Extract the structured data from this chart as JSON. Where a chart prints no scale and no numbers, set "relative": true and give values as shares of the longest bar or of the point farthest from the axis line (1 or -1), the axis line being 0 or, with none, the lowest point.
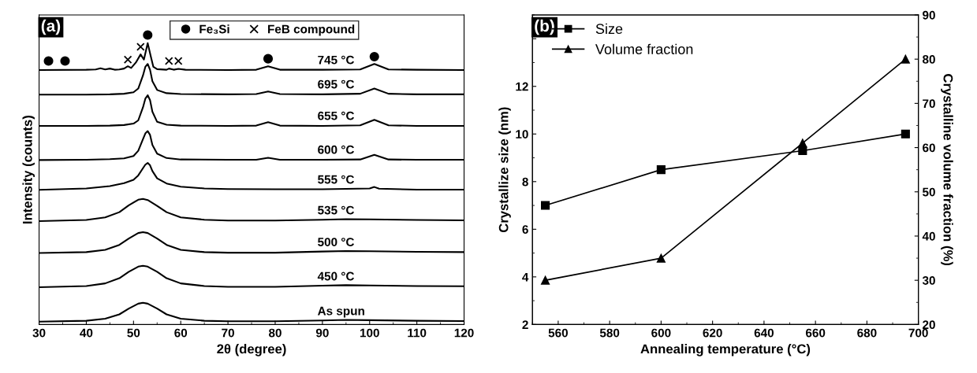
{
  "chart_data": [
    {
      "type": "line",
      "relative": true,
      "xlabel": "2θ (degree)",
      "ylabel": "Intensity (counts)",
      "xlim": [
        30,
        120
      ],
      "xticks": [
        30,
        40,
        50,
        60,
        70,
        80,
        90,
        100,
        110,
        120
      ],
      "tick_labels": "x",
      "legend": "top",
      "annotations": [
        "(a)"
      ],
      "series": [
        {
          "name": "745 °C",
          "color": "#000000",
          "x": [
            30,
            40,
            42,
            43,
            44,
            45,
            46,
            47,
            48,
            48.8,
            49.5,
            50.5,
            51.5,
            52.2,
            53,
            53.6,
            54.2,
            55,
            57,
            57.5,
            58.5,
            59.5,
            61,
            70,
            76,
            78.5,
            81,
            90,
            98,
            101,
            104,
            110,
            120
          ],
          "values": [
            0.879,
            0.88,
            0.881,
            0.885,
            0.881,
            0.884,
            0.88,
            0.881,
            0.884,
            0.892,
            0.886,
            0.905,
            0.933,
            0.915,
            0.972,
            0.93,
            0.89,
            0.882,
            0.88,
            0.884,
            0.88,
            0.883,
            0.88,
            0.879,
            0.88,
            0.892,
            0.88,
            0.88,
            0.881,
            0.9,
            0.881,
            0.88,
            0.879
          ]
        },
        {
          "name": "695 °C",
          "color": "#000000",
          "x": [
            30,
            40,
            45,
            48,
            50,
            51,
            52,
            52.5,
            53,
            53.5,
            54,
            55,
            57,
            60,
            70,
            76,
            78.5,
            81,
            90,
            98,
            101,
            104,
            110,
            120
          ],
          "values": [
            0.794,
            0.794,
            0.795,
            0.797,
            0.802,
            0.815,
            0.86,
            0.89,
            0.9,
            0.88,
            0.84,
            0.81,
            0.799,
            0.796,
            0.795,
            0.796,
            0.805,
            0.796,
            0.795,
            0.797,
            0.815,
            0.797,
            0.795,
            0.795
          ]
        },
        {
          "name": "655 °C",
          "color": "#000000",
          "x": [
            30,
            40,
            45,
            48,
            50,
            51,
            52,
            52.5,
            53,
            53.5,
            54,
            55,
            57,
            60,
            70,
            76,
            78.5,
            81,
            90,
            98,
            101,
            104,
            110,
            120
          ],
          "values": [
            0.686,
            0.686,
            0.687,
            0.689,
            0.694,
            0.705,
            0.75,
            0.78,
            0.792,
            0.775,
            0.735,
            0.7,
            0.69,
            0.687,
            0.686,
            0.687,
            0.699,
            0.687,
            0.686,
            0.688,
            0.707,
            0.688,
            0.686,
            0.686
          ]
        },
        {
          "name": "600 °C",
          "color": "#000000",
          "x": [
            30,
            40,
            45,
            48,
            50,
            51,
            52,
            52.5,
            53,
            53.5,
            54,
            55,
            57,
            60,
            70,
            76,
            78.5,
            81,
            90,
            98,
            101,
            104,
            110,
            120
          ],
          "values": [
            0.568,
            0.569,
            0.571,
            0.574,
            0.582,
            0.6,
            0.64,
            0.66,
            0.668,
            0.655,
            0.62,
            0.59,
            0.575,
            0.57,
            0.569,
            0.569,
            0.576,
            0.569,
            0.569,
            0.57,
            0.586,
            0.57,
            0.569,
            0.569
          ]
        },
        {
          "name": "555 °C",
          "color": "#000000",
          "x": [
            30,
            40,
            45,
            48,
            50,
            51,
            52,
            52.5,
            53,
            53.5,
            54,
            55,
            57,
            60,
            65,
            70,
            80,
            90,
            100,
            101,
            102,
            110,
            120
          ],
          "values": [
            0.465,
            0.47,
            0.478,
            0.488,
            0.5,
            0.515,
            0.54,
            0.552,
            0.558,
            0.55,
            0.53,
            0.505,
            0.487,
            0.476,
            0.47,
            0.468,
            0.467,
            0.467,
            0.47,
            0.475,
            0.469,
            0.466,
            0.466
          ]
        },
        {
          "name": "535 °C",
          "color": "#000000",
          "x": [
            30,
            40,
            44,
            47,
            49,
            51,
            52,
            53,
            55,
            57,
            60,
            65,
            70,
            80,
            90,
            95,
            100,
            110,
            120
          ],
          "values": [
            0.357,
            0.361,
            0.37,
            0.388,
            0.412,
            0.431,
            0.434,
            0.43,
            0.41,
            0.388,
            0.37,
            0.362,
            0.359,
            0.359,
            0.362,
            0.364,
            0.363,
            0.361,
            0.36
          ]
        },
        {
          "name": "500 °C",
          "color": "#000000",
          "x": [
            30,
            40,
            44,
            47,
            49,
            51,
            52,
            53,
            55,
            57,
            60,
            65,
            70,
            80,
            90,
            95,
            100,
            110,
            120
          ],
          "values": [
            0.247,
            0.25,
            0.258,
            0.275,
            0.297,
            0.316,
            0.319,
            0.316,
            0.297,
            0.275,
            0.258,
            0.25,
            0.248,
            0.248,
            0.252,
            0.254,
            0.253,
            0.251,
            0.25
          ]
        },
        {
          "name": "450 °C",
          "color": "#000000",
          "x": [
            30,
            40,
            44,
            47,
            49,
            51,
            52,
            53,
            55,
            57,
            60,
            65,
            70,
            80,
            90,
            95,
            100,
            110,
            120
          ],
          "values": [
            0.129,
            0.133,
            0.142,
            0.16,
            0.182,
            0.2,
            0.203,
            0.2,
            0.182,
            0.16,
            0.142,
            0.133,
            0.13,
            0.13,
            0.134,
            0.136,
            0.135,
            0.133,
            0.132
          ]
        },
        {
          "name": "As spun",
          "color": "#000000",
          "x": [
            30,
            40,
            44,
            47,
            49,
            51,
            52,
            53,
            55,
            57,
            60,
            65,
            70,
            80,
            90,
            95,
            100,
            110,
            120
          ],
          "values": [
            0.01,
            0.013,
            0.02,
            0.035,
            0.055,
            0.072,
            0.075,
            0.072,
            0.055,
            0.035,
            0.02,
            0.013,
            0.011,
            0.011,
            0.014,
            0.016,
            0.015,
            0.013,
            0.012
          ]
        },
        {
          "name": "Fe₃Si",
          "type": "scatter",
          "marker": "circle",
          "color": "#000000",
          "x": [
            32,
            35.5,
            53,
            78.5,
            101
          ],
          "values": [
            0.91,
            0.91,
            1.0,
            0.918,
            0.925
          ]
        },
        {
          "name": "FeB compound",
          "type": "scatter",
          "marker": "cross",
          "color": "#000000",
          "x": [
            48.8,
            51.5,
            57.5,
            59.5
          ],
          "values": [
            0.915,
            0.959,
            0.91,
            0.91
          ]
        }
      ]
    },
    {
      "type": "line",
      "xlabel": "Annealing temperature (°C)",
      "ylabel": "Crystallize size (nm)",
      "y2label": "Crystalline volume fraction (%)",
      "xlim": [
        550,
        700
      ],
      "xticks": [
        560,
        580,
        600,
        620,
        640,
        660,
        680,
        700
      ],
      "ylim": [
        2,
        15
      ],
      "yticks": [
        2,
        4,
        6,
        8,
        10,
        12,
        {
          "value": 14,
          "label": null
        }
      ],
      "y2lim": [
        20,
        90
      ],
      "y2ticks": [
        20,
        30,
        40,
        50,
        60,
        70,
        80,
        90
      ],
      "legend": "top left",
      "annotations": [
        "(b)"
      ],
      "x": [
        555,
        600,
        655,
        695
      ],
      "series": [
        {
          "name": "Size",
          "color": "#000000",
          "marker": "square",
          "values": [
            7.0,
            8.5,
            9.3,
            10.0
          ]
        },
        {
          "name": "Volume fraction",
          "color": "#000000",
          "marker": "triangle",
          "axis": "y2",
          "values": [
            30,
            35,
            61,
            80
          ]
        }
      ]
    }
  ]
}
